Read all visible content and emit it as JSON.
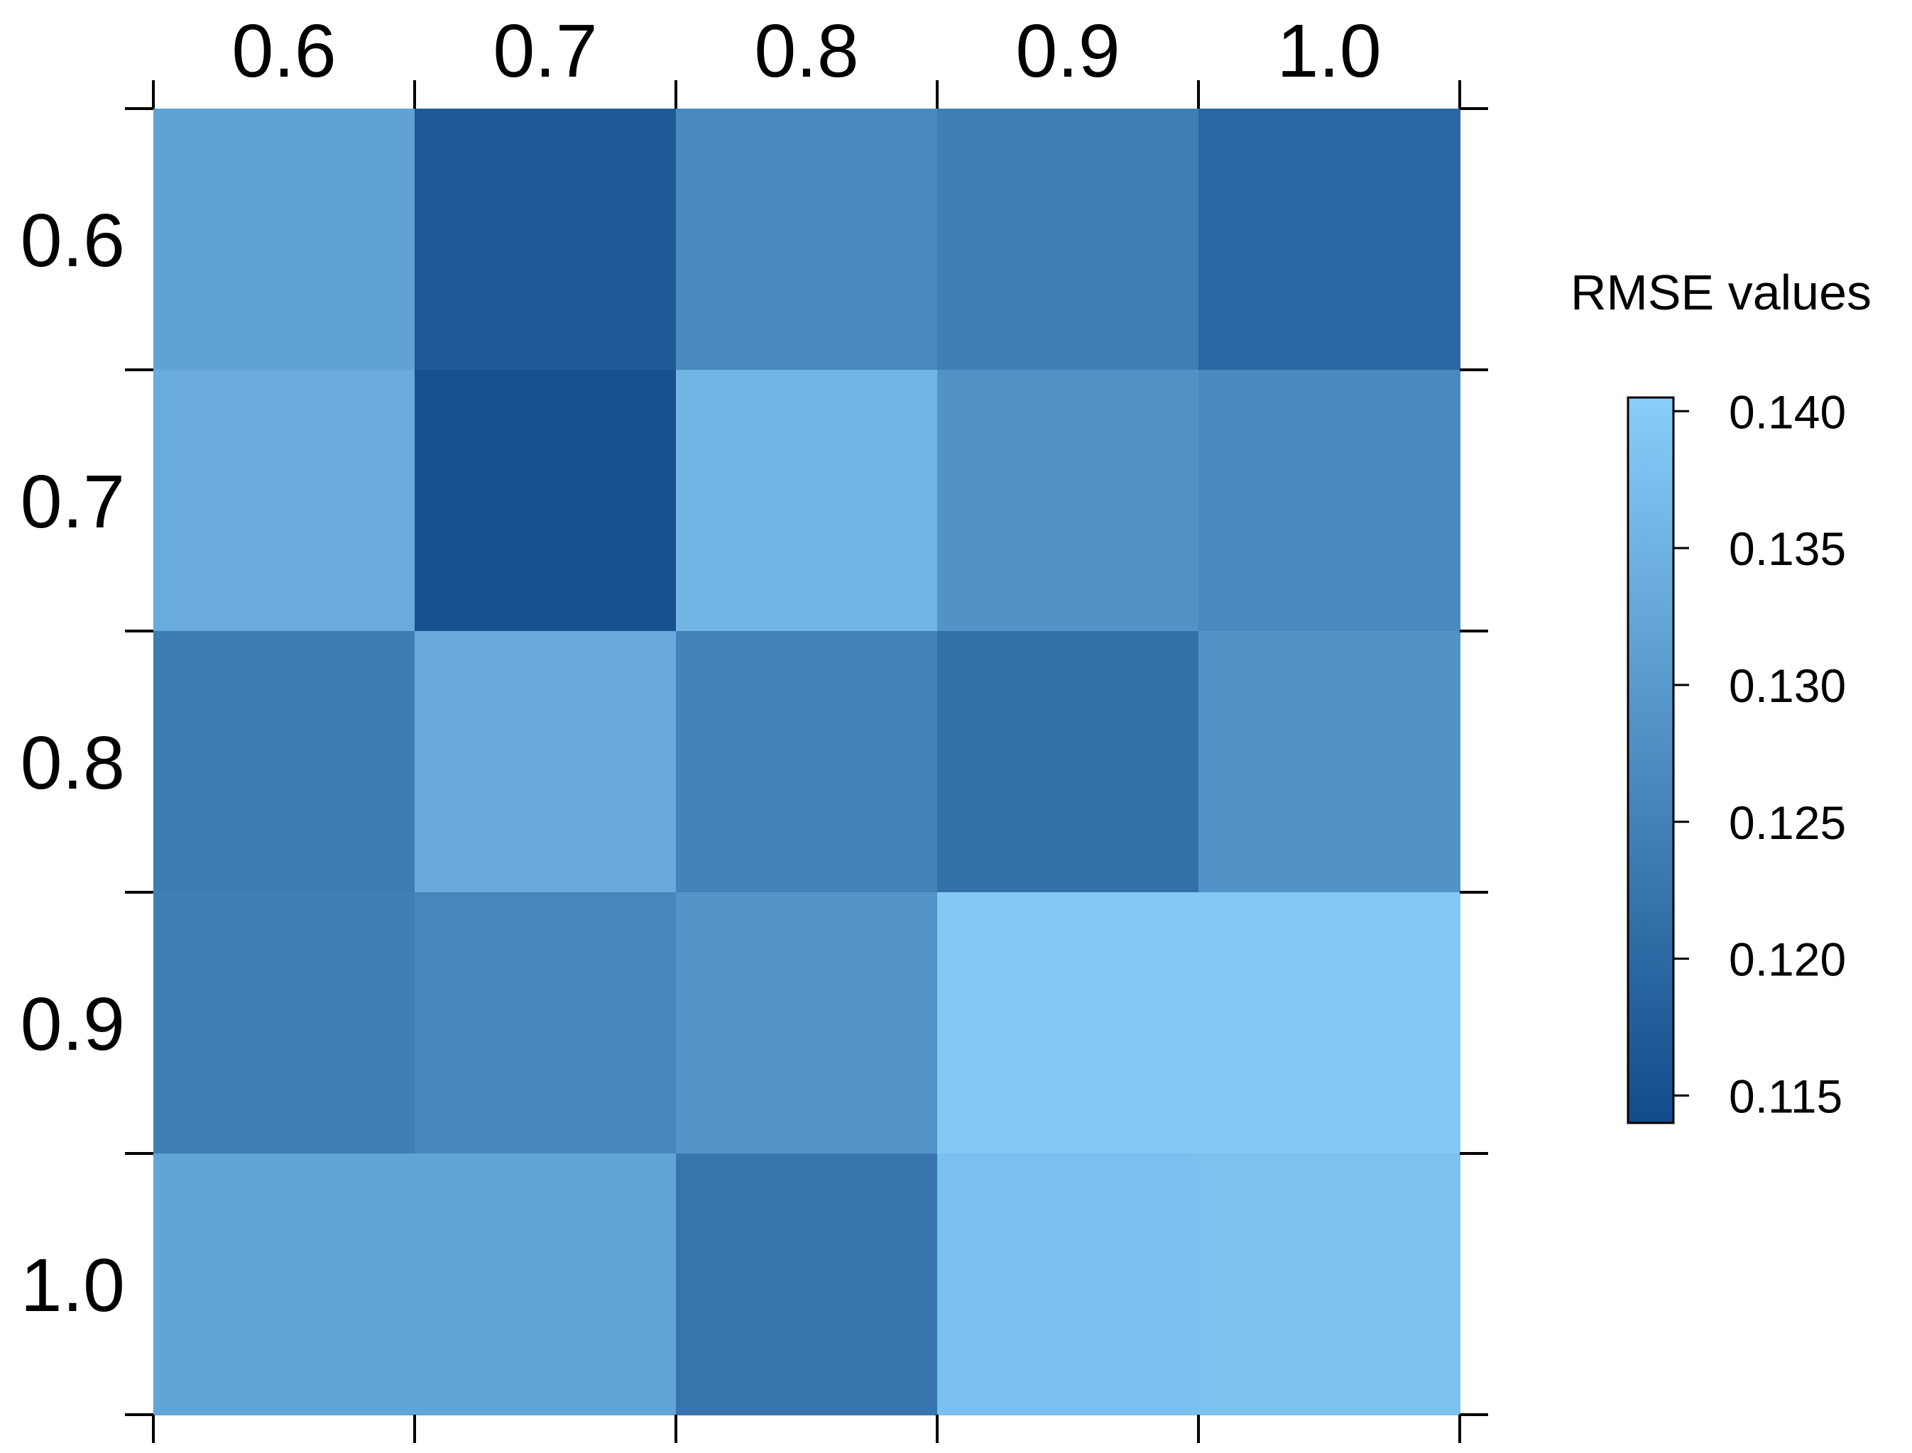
{
  "chart_data": {
    "type": "heatmap",
    "x_categories": [
      "0.6",
      "0.7",
      "0.8",
      "0.9",
      "1.0"
    ],
    "y_categories": [
      "0.6",
      "0.7",
      "0.8",
      "0.9",
      "1.0"
    ],
    "values": [
      [
        0.1315,
        0.117,
        0.1265,
        0.1245,
        0.1195
      ],
      [
        0.1335,
        0.115,
        0.1355,
        0.1285,
        0.1265
      ],
      [
        0.124,
        0.133,
        0.125,
        0.1215,
        0.1285
      ],
      [
        0.1245,
        0.126,
        0.129,
        0.1395,
        0.1395
      ],
      [
        0.132,
        0.132,
        0.1225,
        0.1375,
        0.138
      ]
    ],
    "legend": {
      "title": "RMSE values",
      "ticks": [
        "0.115",
        "0.120",
        "0.125",
        "0.130",
        "0.135",
        "0.140"
      ],
      "tick_values": [
        0.115,
        0.12,
        0.125,
        0.13,
        0.135,
        0.14
      ],
      "range": [
        0.114,
        0.1405
      ],
      "color_low": "#124B8A",
      "color_high": "#87CEFA",
      "placement": "right"
    },
    "x_axis_position": "top",
    "title": "",
    "xlabel": "",
    "ylabel": ""
  }
}
